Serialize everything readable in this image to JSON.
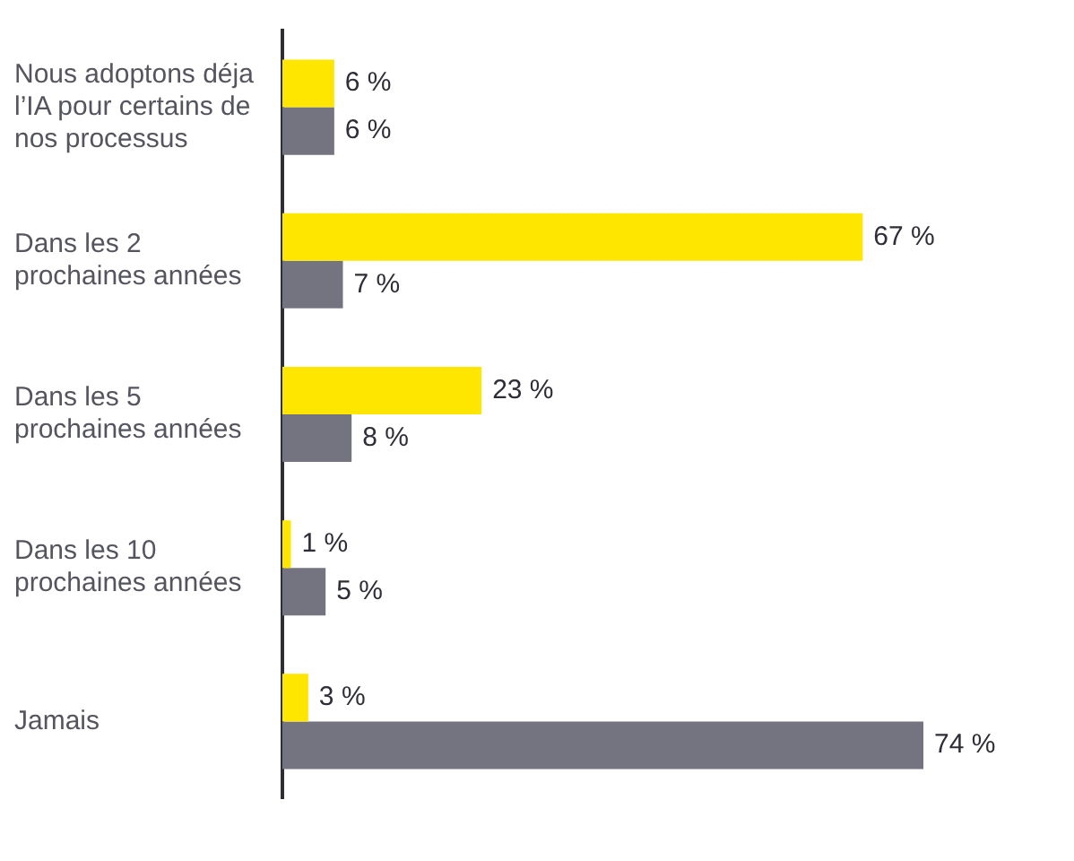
{
  "chart_data": {
    "type": "bar",
    "orientation": "horizontal",
    "categories": [
      "Nous adoptons déja l’IA pour certains de nos processus",
      "Dans les 2 prochaines années",
      "Dans les 5 prochaines années",
      "Dans les 10 prochaines années",
      "Jamais"
    ],
    "series": [
      {
        "color": "#ffe600",
        "values": [
          6,
          67,
          23,
          1,
          3
        ],
        "value_labels": [
          "6 %",
          "67 %",
          "23 %",
          "1 %",
          "3 %"
        ]
      },
      {
        "color": "#747480",
        "values": [
          6,
          7,
          8,
          5,
          74
        ],
        "value_labels": [
          "6 %",
          "7 %",
          "8 %",
          "5 %",
          "74 %"
        ]
      }
    ],
    "tick_labels": "y",
    "grid": false,
    "legend": false
  }
}
